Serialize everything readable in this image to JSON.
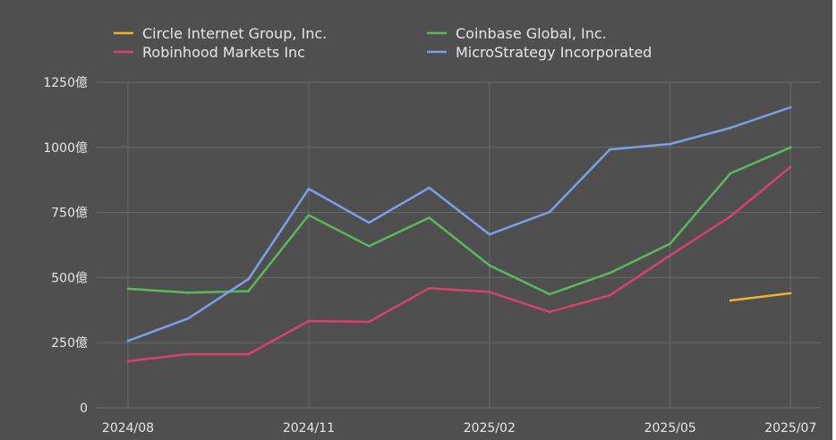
{
  "chart_data": {
    "type": "line",
    "title": "",
    "xlabel": "",
    "ylabel": "",
    "x": [
      "2024/08",
      "2024/09",
      "2024/10",
      "2024/11",
      "2024/12",
      "2025/01",
      "2025/02",
      "2025/03",
      "2025/04",
      "2025/05",
      "2025/06",
      "2025/07"
    ],
    "x_tick_labels": [
      "2024/08",
      "2024/11",
      "2025/02",
      "2025/05",
      "2025/07"
    ],
    "y_ticks": [
      0,
      250,
      500,
      750,
      1000,
      1250
    ],
    "y_tick_labels": [
      "0",
      "250億",
      "500億",
      "750億",
      "1000億",
      "1250億"
    ],
    "ylim": [
      0,
      1250
    ],
    "grid": true,
    "legend_position": "top",
    "background": "#4f4f4f",
    "series": [
      {
        "name": "Circle Internet Group, Inc.",
        "color": "#f0b030",
        "values": [
          null,
          null,
          null,
          null,
          null,
          null,
          null,
          null,
          null,
          null,
          412,
          440
        ]
      },
      {
        "name": "Coinbase Global, Inc.",
        "color": "#5cb85c",
        "values": [
          457,
          442,
          448,
          740,
          621,
          730,
          547,
          436,
          518,
          630,
          900,
          1000
        ]
      },
      {
        "name": "Robinhood Markets Inc",
        "color": "#d6426e",
        "values": [
          179,
          206,
          206,
          333,
          330,
          459,
          445,
          368,
          432,
          585,
          735,
          925
        ]
      },
      {
        "name": "MicroStrategy Incorporated",
        "color": "#7b9fe8",
        "values": [
          257,
          343,
          494,
          841,
          711,
          845,
          666,
          752,
          992,
          1013,
          1075,
          1154
        ]
      }
    ]
  }
}
